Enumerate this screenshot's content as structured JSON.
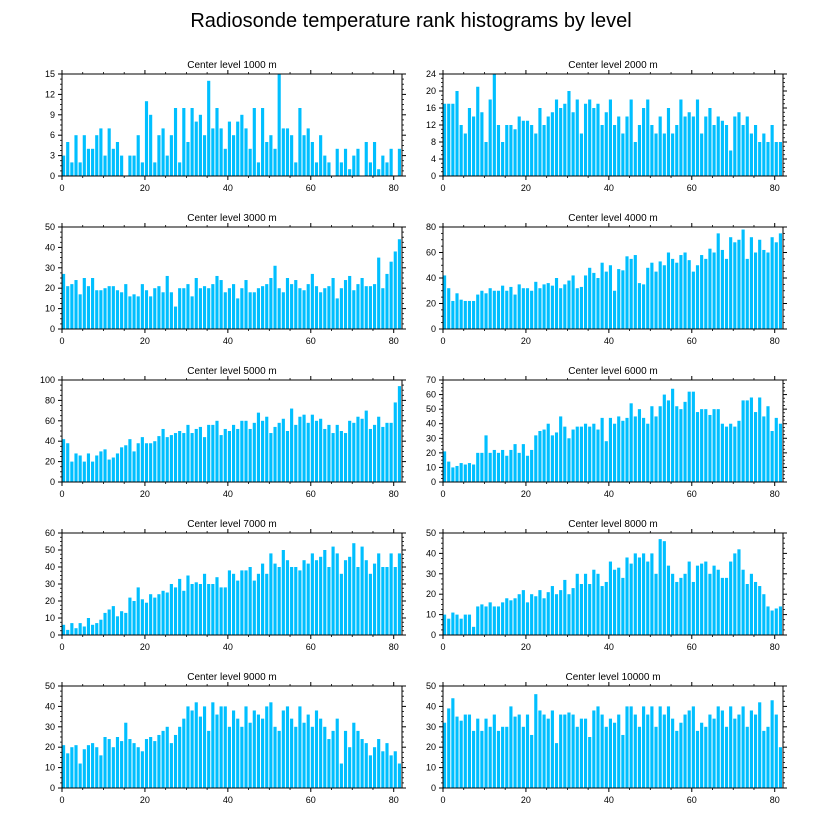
{
  "title": "Radiosonde temperature rank histograms by level",
  "bar_color": "#00bfff",
  "chart_data": [
    {
      "type": "bar",
      "title": "Center level 1000 m",
      "ylim": [
        0,
        15
      ],
      "yticks": [
        0,
        3,
        6,
        9,
        12,
        15
      ],
      "xlim": [
        0,
        82
      ],
      "xticks": [
        0,
        20,
        40,
        60,
        80
      ],
      "values": [
        3,
        5,
        2,
        6,
        2,
        6,
        4,
        4,
        6,
        7,
        3,
        7,
        4,
        5,
        3,
        0,
        3,
        3,
        6,
        2,
        11,
        9,
        2,
        6,
        7,
        3,
        6,
        10,
        2,
        10,
        5,
        10,
        8,
        9,
        6,
        14,
        7,
        10,
        7,
        4,
        8,
        6,
        8,
        9,
        7,
        4,
        10,
        2,
        10,
        5,
        6,
        4,
        15,
        7,
        7,
        6,
        2,
        10,
        6,
        7,
        5,
        2,
        6,
        3,
        2,
        0,
        4,
        2,
        4,
        1,
        3,
        4,
        0,
        5,
        2,
        5,
        1,
        3,
        2,
        4,
        0,
        4
      ]
    },
    {
      "type": "bar",
      "title": "Center level 2000 m",
      "ylim": [
        0,
        24
      ],
      "yticks": [
        0,
        4,
        8,
        12,
        16,
        20,
        24
      ],
      "xlim": [
        0,
        82
      ],
      "xticks": [
        0,
        20,
        40,
        60,
        80
      ],
      "values": [
        17,
        17,
        17,
        20,
        12,
        10,
        16,
        14,
        21,
        15,
        8,
        18,
        24,
        12,
        8,
        12,
        12,
        11,
        14,
        13,
        13,
        12,
        10,
        16,
        12,
        14,
        15,
        18,
        16,
        17,
        20,
        15,
        18,
        10,
        17,
        18,
        16,
        17,
        12,
        15,
        18,
        12,
        14,
        10,
        14,
        18,
        8,
        12,
        16,
        18,
        12,
        10,
        14,
        10,
        16,
        10,
        12,
        18,
        14,
        15,
        14,
        18,
        10,
        14,
        16,
        12,
        14,
        13,
        12,
        6,
        14,
        15,
        12,
        14,
        10,
        12,
        8,
        10,
        8,
        12,
        8,
        8
      ]
    },
    {
      "type": "bar",
      "title": "Center level 3000 m",
      "ylim": [
        0,
        50
      ],
      "yticks": [
        0,
        10,
        20,
        30,
        40,
        50
      ],
      "xlim": [
        0,
        82
      ],
      "xticks": [
        0,
        20,
        40,
        60,
        80
      ],
      "values": [
        27,
        21,
        22,
        24,
        17,
        25,
        21,
        25,
        19,
        19,
        20,
        21,
        21,
        19,
        18,
        22,
        16,
        17,
        16,
        22,
        19,
        16,
        20,
        21,
        18,
        26,
        18,
        11,
        20,
        20,
        22,
        16,
        25,
        20,
        21,
        20,
        22,
        26,
        24,
        18,
        20,
        22,
        15,
        20,
        24,
        18,
        18,
        20,
        21,
        22,
        25,
        31,
        20,
        18,
        25,
        22,
        24,
        20,
        19,
        22,
        27,
        21,
        18,
        20,
        21,
        25,
        15,
        20,
        24,
        26,
        19,
        22,
        25,
        21,
        21,
        22,
        35,
        20,
        27,
        33,
        38,
        44
      ]
    },
    {
      "type": "bar",
      "title": "Center level 4000 m",
      "ylim": [
        0,
        80
      ],
      "yticks": [
        0,
        20,
        40,
        60,
        80
      ],
      "xlim": [
        0,
        82
      ],
      "xticks": [
        0,
        20,
        40,
        60,
        80
      ],
      "values": [
        42,
        32,
        22,
        28,
        23,
        22,
        22,
        22,
        27,
        30,
        28,
        32,
        30,
        30,
        34,
        30,
        33,
        27,
        35,
        32,
        32,
        30,
        37,
        32,
        35,
        36,
        34,
        40,
        32,
        35,
        38,
        42,
        32,
        33,
        42,
        48,
        44,
        40,
        52,
        45,
        50,
        30,
        47,
        46,
        57,
        55,
        58,
        36,
        35,
        48,
        52,
        45,
        53,
        50,
        60,
        55,
        52,
        58,
        60,
        54,
        45,
        50,
        58,
        55,
        63,
        60,
        75,
        62,
        55,
        72,
        68,
        70,
        78,
        55,
        72,
        60,
        70,
        62,
        60,
        72,
        68,
        75
      ]
    },
    {
      "type": "bar",
      "title": "Center level 5000 m",
      "ylim": [
        0,
        100
      ],
      "yticks": [
        0,
        20,
        40,
        60,
        80,
        100
      ],
      "xlim": [
        0,
        82
      ],
      "xticks": [
        0,
        20,
        40,
        60,
        80
      ],
      "values": [
        42,
        38,
        20,
        28,
        26,
        20,
        28,
        20,
        26,
        30,
        32,
        22,
        24,
        28,
        34,
        36,
        42,
        30,
        38,
        44,
        38,
        38,
        40,
        45,
        52,
        44,
        46,
        48,
        50,
        48,
        56,
        48,
        52,
        54,
        44,
        56,
        56,
        60,
        46,
        52,
        50,
        56,
        52,
        60,
        60,
        52,
        58,
        68,
        60,
        64,
        48,
        54,
        58,
        62,
        50,
        72,
        56,
        64,
        66,
        58,
        66,
        60,
        62,
        52,
        56,
        48,
        56,
        50,
        48,
        60,
        58,
        64,
        62,
        70,
        52,
        56,
        64,
        54,
        58,
        58,
        78,
        94
      ]
    },
    {
      "type": "bar",
      "title": "Center level 6000 m",
      "ylim": [
        0,
        70
      ],
      "yticks": [
        0,
        10,
        20,
        30,
        40,
        50,
        60,
        70
      ],
      "xlim": [
        0,
        82
      ],
      "xticks": [
        0,
        20,
        40,
        60,
        80
      ],
      "values": [
        21,
        14,
        10,
        11,
        13,
        12,
        13,
        12,
        20,
        20,
        32,
        20,
        22,
        20,
        22,
        18,
        22,
        26,
        20,
        26,
        18,
        22,
        32,
        35,
        36,
        40,
        32,
        34,
        45,
        38,
        30,
        36,
        38,
        38,
        40,
        38,
        40,
        36,
        44,
        28,
        44,
        40,
        45,
        42,
        44,
        54,
        45,
        50,
        44,
        40,
        52,
        45,
        52,
        60,
        56,
        64,
        52,
        50,
        55,
        62,
        62,
        48,
        50,
        50,
        46,
        50,
        50,
        40,
        38,
        40,
        38,
        42,
        56,
        56,
        58,
        48,
        58,
        45,
        52,
        35,
        44,
        40
      ]
    },
    {
      "type": "bar",
      "title": "Center level 7000 m",
      "ylim": [
        0,
        60
      ],
      "yticks": [
        0,
        10,
        20,
        30,
        40,
        50,
        60
      ],
      "xlim": [
        0,
        82
      ],
      "xticks": [
        0,
        20,
        40,
        60,
        80
      ],
      "values": [
        6,
        3,
        7,
        4,
        7,
        5,
        10,
        6,
        7,
        9,
        13,
        15,
        17,
        11,
        14,
        13,
        22,
        20,
        28,
        21,
        19,
        24,
        22,
        24,
        26,
        25,
        30,
        28,
        33,
        26,
        35,
        30,
        31,
        30,
        36,
        30,
        30,
        34,
        28,
        28,
        38,
        36,
        32,
        38,
        38,
        40,
        32,
        36,
        42,
        36,
        48,
        42,
        40,
        50,
        44,
        40,
        40,
        38,
        44,
        42,
        48,
        44,
        46,
        50,
        40,
        52,
        48,
        36,
        44,
        46,
        54,
        40,
        52,
        44,
        36,
        42,
        48,
        40,
        40,
        48,
        40,
        48
      ]
    },
    {
      "type": "bar",
      "title": "Center level 8000 m",
      "ylim": [
        0,
        50
      ],
      "yticks": [
        0,
        10,
        20,
        30,
        40,
        50
      ],
      "xlim": [
        0,
        82
      ],
      "xticks": [
        0,
        20,
        40,
        60,
        80
      ],
      "values": [
        10,
        8,
        11,
        10,
        8,
        10,
        10,
        4,
        14,
        15,
        14,
        16,
        14,
        14,
        16,
        18,
        17,
        18,
        20,
        22,
        16,
        20,
        19,
        22,
        18,
        21,
        24,
        20,
        22,
        27,
        20,
        23,
        30,
        25,
        30,
        25,
        32,
        30,
        24,
        26,
        36,
        32,
        33,
        28,
        38,
        35,
        40,
        38,
        40,
        36,
        40,
        30,
        47,
        46,
        34,
        30,
        26,
        28,
        30,
        36,
        26,
        34,
        35,
        36,
        30,
        34,
        32,
        28,
        28,
        36,
        40,
        42,
        32,
        25,
        30,
        26,
        24,
        20,
        14,
        12,
        13,
        14
      ]
    },
    {
      "type": "bar",
      "title": "Center level 9000 m",
      "ylim": [
        0,
        50
      ],
      "yticks": [
        0,
        10,
        20,
        30,
        40,
        50
      ],
      "xlim": [
        0,
        82
      ],
      "xticks": [
        0,
        20,
        40,
        60,
        80
      ],
      "values": [
        21,
        17,
        20,
        21,
        12,
        19,
        21,
        22,
        20,
        16,
        25,
        24,
        20,
        25,
        23,
        32,
        24,
        22,
        20,
        18,
        24,
        25,
        23,
        26,
        28,
        30,
        22,
        26,
        30,
        34,
        40,
        38,
        42,
        35,
        40,
        28,
        42,
        36,
        40,
        40,
        30,
        38,
        34,
        30,
        40,
        32,
        38,
        36,
        34,
        40,
        42,
        30,
        28,
        38,
        40,
        34,
        30,
        40,
        32,
        36,
        30,
        38,
        34,
        30,
        24,
        28,
        34,
        12,
        28,
        20,
        32,
        28,
        24,
        22,
        16,
        20,
        24,
        18,
        22,
        16,
        18,
        12
      ]
    },
    {
      "type": "bar",
      "title": "Center level 10000 m",
      "ylim": [
        0,
        50
      ],
      "yticks": [
        0,
        10,
        20,
        30,
        40,
        50
      ],
      "xlim": [
        0,
        82
      ],
      "xticks": [
        0,
        20,
        40,
        60,
        80
      ],
      "values": [
        32,
        39,
        44,
        35,
        33,
        36,
        36,
        28,
        34,
        28,
        34,
        30,
        36,
        28,
        30,
        30,
        40,
        35,
        36,
        30,
        36,
        26,
        46,
        38,
        36,
        34,
        38,
        22,
        36,
        36,
        37,
        36,
        30,
        34,
        34,
        25,
        38,
        40,
        36,
        30,
        34,
        32,
        36,
        26,
        40,
        40,
        36,
        30,
        40,
        36,
        40,
        30,
        40,
        36,
        40,
        34,
        28,
        32,
        36,
        38,
        40,
        28,
        32,
        30,
        36,
        34,
        40,
        38,
        30,
        40,
        34,
        36,
        40,
        30,
        38,
        36,
        42,
        28,
        30,
        43,
        36,
        20
      ]
    }
  ]
}
